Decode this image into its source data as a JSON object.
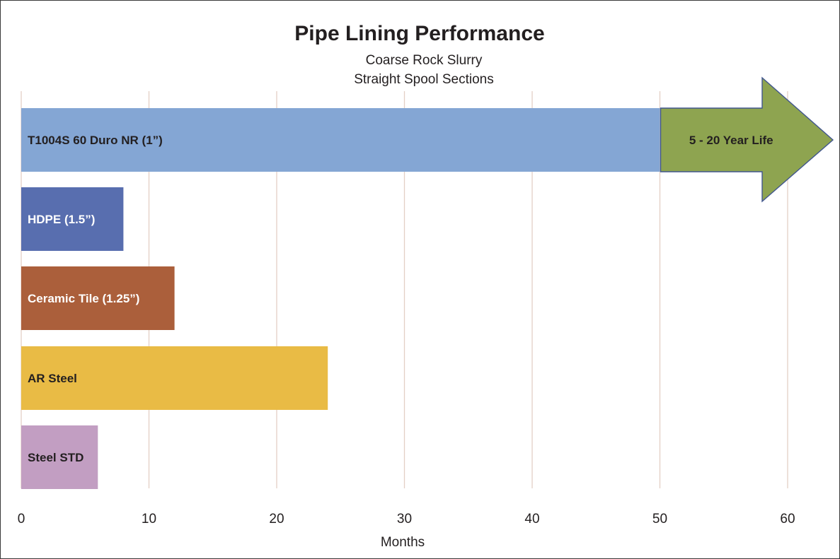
{
  "chart_data": {
    "type": "bar",
    "orientation": "horizontal",
    "title": "Pipe Lining Performance",
    "subtitle_lines": [
      "Coarse Rock Slurry",
      "Straight Spool Sections"
    ],
    "xlabel": "Months",
    "ylabel": "",
    "xlim": [
      0,
      64
    ],
    "xticks": [
      0,
      10,
      20,
      30,
      40,
      50,
      60
    ],
    "grid": true,
    "categories": [
      "T1004S 60 Duro NR (1”)",
      "HDPE (1.5”)",
      "Ceramic Tile (1.25”)",
      "AR Steel",
      "Steel STD"
    ],
    "values": [
      50,
      8,
      12,
      24,
      6
    ],
    "bar_colors": [
      "#84a6d4",
      "#586eaf",
      "#ab5f3b",
      "#e9bb45",
      "#c29ec2"
    ],
    "label_colors": [
      "#231f20",
      "#ffffff",
      "#ffffff",
      "#231f20",
      "#231f20"
    ],
    "annotation": {
      "text": "5 - 20 Year Life",
      "start": 50,
      "color": "#8ea450",
      "edge_color": "#41568e"
    }
  }
}
